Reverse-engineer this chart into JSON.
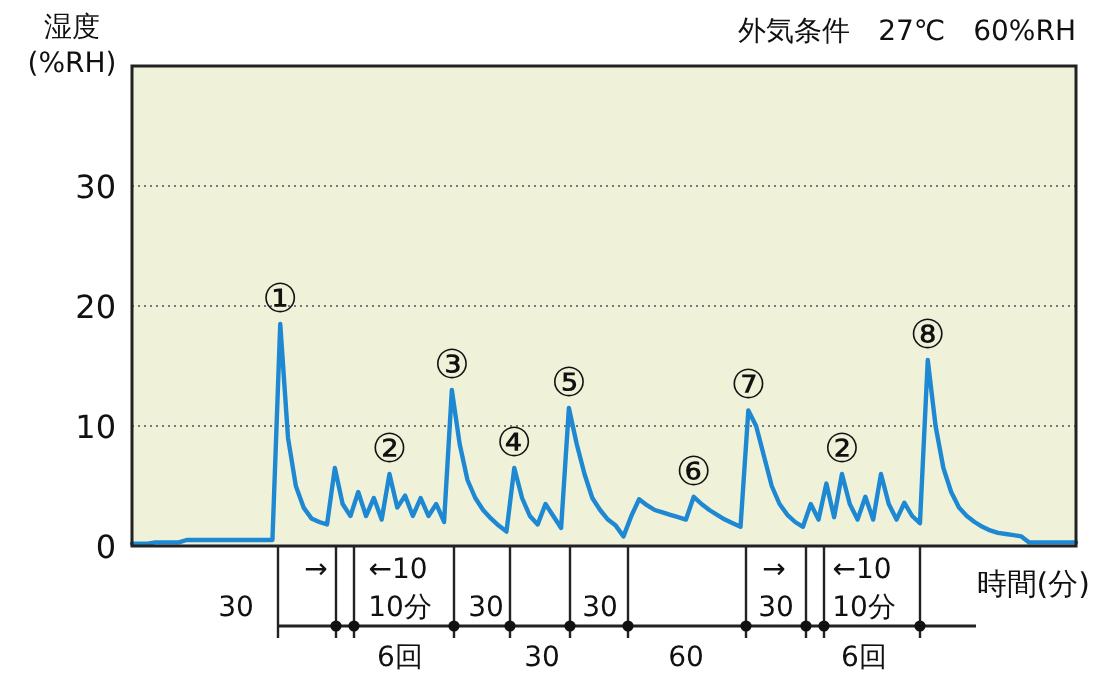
{
  "chart_data": [
    {
      "type": "line",
      "ylabel": "湿度\n(%RH)",
      "subtitle": "外気条件　27℃　60%RH",
      "xlabel": "時間(分)",
      "color": "#1e88d2",
      "ylim": [
        0,
        40
      ],
      "yticks": [
        0,
        10,
        20,
        30
      ],
      "grid": "y",
      "categories": [
        null,
        null,
        null,
        null,
        null,
        null,
        null,
        null,
        null,
        null,
        null,
        null,
        null,
        null,
        null,
        null,
        null,
        null,
        null,
        null,
        null,
        null,
        null,
        null,
        null,
        null,
        null,
        null,
        null,
        null,
        null,
        null,
        null,
        null,
        null,
        null,
        null,
        null,
        null,
        null,
        null,
        null,
        null,
        null,
        null,
        null,
        null,
        null,
        null,
        null,
        null,
        null,
        null,
        null,
        null,
        null,
        null,
        null,
        null,
        null,
        null,
        null,
        null,
        null,
        null,
        null,
        null,
        null,
        null,
        null,
        null,
        null,
        null,
        null,
        null,
        null,
        null,
        null,
        null,
        null,
        null,
        null,
        null,
        null,
        null,
        null,
        null,
        null,
        null,
        null,
        null,
        null,
        null,
        null,
        null,
        null,
        null,
        null,
        null,
        null,
        null,
        null,
        null,
        null,
        null,
        null,
        null,
        null,
        null,
        null,
        null,
        null,
        null,
        null,
        null,
        null,
        null,
        null,
        null,
        null,
        null,
        null
      ],
      "values": [
        0.2,
        0.2,
        0.2,
        0.3,
        0.3,
        0.3,
        0.3,
        0.5,
        0.5,
        0.5,
        0.5,
        0.5,
        0.5,
        0.5,
        0.5,
        0.5,
        0.5,
        0.5,
        0.5,
        18.5,
        9,
        5,
        3.2,
        2.3,
        2.0,
        1.8,
        6.5,
        3.5,
        2.5,
        4.5,
        2.5,
        4.0,
        2.2,
        6.0,
        3.2,
        4.2,
        2.5,
        4.0,
        2.5,
        3.5,
        2.0,
        13,
        8.5,
        5.5,
        4,
        3,
        2.3,
        1.7,
        1.2,
        6.5,
        4,
        2.5,
        1.8,
        3.5,
        2.5,
        1.5,
        11.5,
        8.5,
        6,
        4,
        3,
        2.2,
        1.7,
        0.8,
        2.5,
        3.9,
        3.4,
        3.0,
        2.8,
        2.6,
        2.4,
        2.2,
        4.1,
        3.5,
        3.0,
        2.6,
        2.2,
        1.9,
        1.6,
        11.3,
        10,
        7.5,
        5,
        3.5,
        2.6,
        2.0,
        1.6,
        3.5,
        2.2,
        5.2,
        2.4,
        6.0,
        3.5,
        2.2,
        4.1,
        2.2,
        6.0,
        3.5,
        2.2,
        3.6,
        2.5,
        1.9,
        15.5,
        10,
        6.5,
        4.5,
        3.2,
        2.5,
        2.0,
        1.6,
        1.3,
        1.1,
        1.0,
        0.9,
        0.8,
        0.3,
        0.3,
        0.3,
        0.3,
        0.3,
        0.3,
        0.3
      ],
      "value_labels": [
        null,
        null,
        null,
        null,
        null,
        null,
        null,
        null,
        null,
        null,
        null,
        null,
        null,
        null,
        null,
        null,
        null,
        null,
        null,
        "①",
        null,
        null,
        null,
        null,
        null,
        null,
        null,
        null,
        null,
        null,
        null,
        null,
        null,
        "②",
        null,
        null,
        null,
        null,
        null,
        null,
        null,
        "③",
        null,
        null,
        null,
        null,
        null,
        null,
        null,
        "④",
        null,
        null,
        null,
        null,
        null,
        null,
        "⑤",
        null,
        null,
        null,
        null,
        null,
        null,
        null,
        null,
        null,
        null,
        null,
        null,
        null,
        null,
        null,
        "⑥",
        null,
        null,
        null,
        null,
        null,
        null,
        "⑦",
        null,
        null,
        null,
        null,
        null,
        null,
        null,
        null,
        null,
        null,
        null,
        "②",
        null,
        null,
        null,
        null,
        null,
        null,
        null,
        null,
        null,
        null,
        "⑧",
        null,
        null,
        null,
        null,
        null,
        null,
        null,
        null,
        null,
        null,
        null,
        null,
        null,
        null,
        null,
        null,
        null,
        null,
        null
      ]
    },
    {
      "type": "other",
      "annotations": [
        "→",
        "←10",
        "→",
        "←10",
        "30",
        "10分",
        "30",
        "30",
        "30",
        "10分",
        "6回",
        "30",
        "60",
        "6回"
      ]
    }
  ]
}
